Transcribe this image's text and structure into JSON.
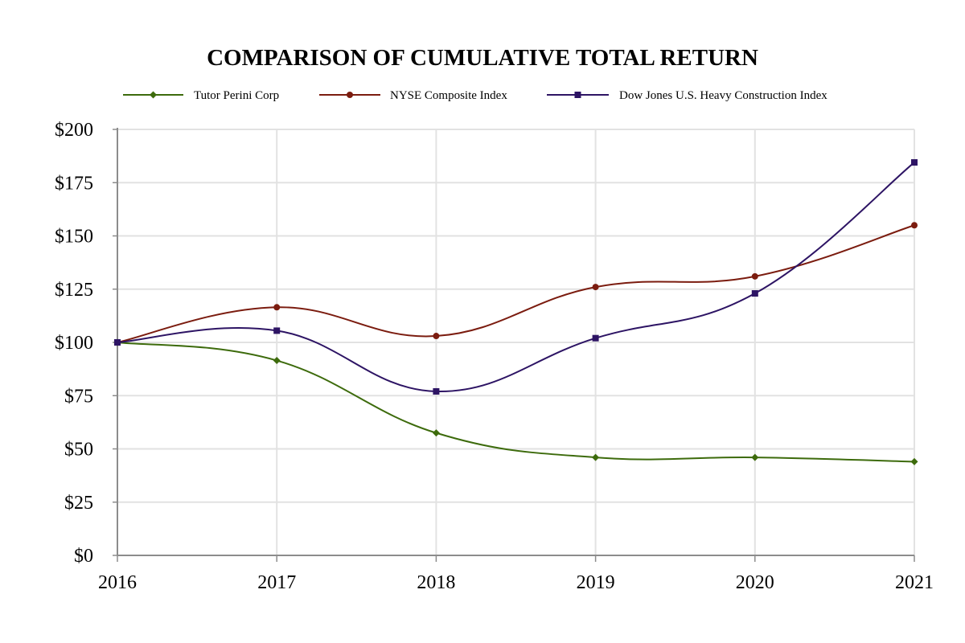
{
  "chart_data": {
    "type": "line",
    "title": "COMPARISON OF CUMULATIVE TOTAL RETURN",
    "xlabel": "",
    "ylabel": "",
    "x": [
      "2016",
      "2017",
      "2018",
      "2019",
      "2020",
      "2021"
    ],
    "ylim": [
      0,
      200
    ],
    "y_ticks": [
      0,
      25,
      50,
      75,
      100,
      125,
      150,
      175,
      200
    ],
    "y_tick_labels": [
      "$0",
      "$25",
      "$50",
      "$75",
      "$100",
      "$125",
      "$150",
      "$175",
      "$200"
    ],
    "grid": true,
    "legend_position": "top",
    "series": [
      {
        "name": "Tutor Perini Corp",
        "color": "#3d6b0c",
        "marker": "diamond",
        "values": [
          100,
          91.5,
          57.5,
          46,
          46,
          44
        ]
      },
      {
        "name": "NYSE Composite Index",
        "color": "#7b1c0f",
        "marker": "circle",
        "values": [
          100,
          116.5,
          103,
          126,
          131,
          155
        ]
      },
      {
        "name": "Dow Jones U.S. Heavy Construction Index",
        "color": "#2d1464",
        "marker": "square",
        "values": [
          100,
          105.5,
          77,
          102,
          123,
          184.5
        ]
      }
    ]
  }
}
